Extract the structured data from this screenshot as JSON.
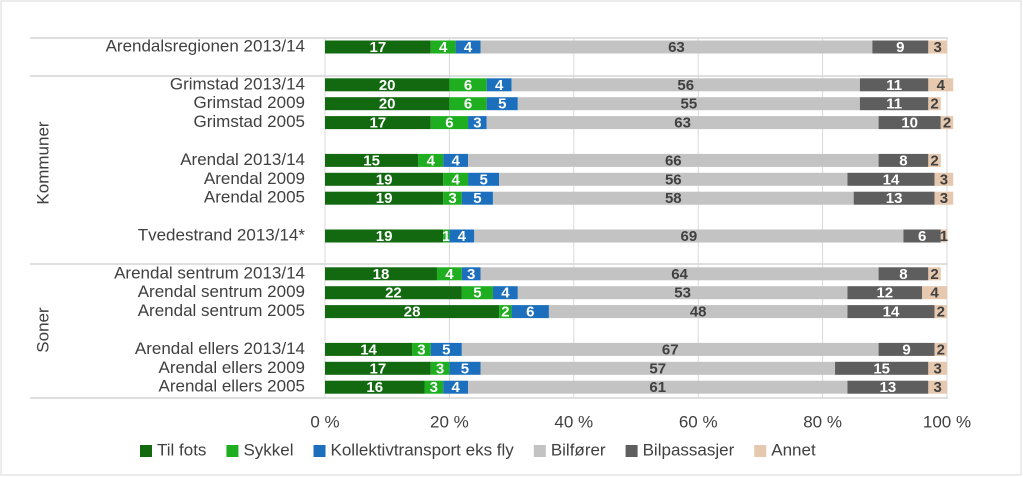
{
  "chart_data": {
    "type": "stacked-bar-horizontal",
    "categories": [
      "Arendalsregionen 2013/14",
      null,
      "Grimstad 2013/14",
      "Grimstad 2009",
      "Grimstad 2005",
      null,
      "Arendal 2013/14",
      "Arendal 2009",
      "Arendal 2005",
      null,
      "Tvedestrand 2013/14*",
      null,
      "Arendal sentrum 2013/14",
      "Arendal sentrum 2009",
      "Arendal sentrum 2005",
      null,
      "Arendal ellers 2013/14",
      "Arendal ellers 2009",
      "Arendal ellers 2005"
    ],
    "group_labels": [
      "Kommuner",
      "Soner"
    ],
    "series": [
      {
        "name": "Til fots",
        "color": "#13690f",
        "values": [
          17,
          null,
          20,
          20,
          17,
          null,
          15,
          19,
          19,
          null,
          19,
          null,
          18,
          22,
          28,
          null,
          14,
          17,
          16
        ]
      },
      {
        "name": "Sykkel",
        "color": "#1fae1f",
        "values": [
          4,
          null,
          6,
          6,
          6,
          null,
          4,
          4,
          3,
          null,
          1,
          null,
          4,
          5,
          2,
          null,
          3,
          3,
          3
        ]
      },
      {
        "name": "Kollektivtransport eks fly",
        "color": "#1b6fbd",
        "values": [
          4,
          null,
          4,
          5,
          3,
          null,
          4,
          5,
          5,
          null,
          4,
          null,
          3,
          4,
          6,
          null,
          5,
          5,
          4
        ]
      },
      {
        "name": "Bilfører",
        "color": "#c3c3c3",
        "values": [
          63,
          null,
          56,
          55,
          63,
          null,
          66,
          56,
          58,
          null,
          69,
          null,
          64,
          53,
          48,
          null,
          67,
          57,
          61
        ]
      },
      {
        "name": "Bilpassasjer",
        "color": "#5e5e5e",
        "values": [
          9,
          null,
          11,
          11,
          10,
          null,
          8,
          14,
          13,
          null,
          6,
          null,
          8,
          12,
          14,
          null,
          9,
          15,
          13
        ]
      },
      {
        "name": "Annet",
        "color": "#e5c8ad",
        "values": [
          3,
          null,
          4,
          2,
          2,
          null,
          2,
          3,
          3,
          null,
          1,
          null,
          2,
          4,
          2,
          null,
          2,
          3,
          3
        ]
      }
    ],
    "xlim": [
      0,
      100
    ],
    "xticks": [
      {
        "value": 0,
        "label": "0 %"
      },
      {
        "value": 20,
        "label": "20 %"
      },
      {
        "value": 40,
        "label": "40 %"
      },
      {
        "value": 60,
        "label": "60 %"
      },
      {
        "value": 80,
        "label": "80 %"
      },
      {
        "value": 100,
        "label": "100 %"
      }
    ],
    "grid": true,
    "legend": "bottom"
  }
}
